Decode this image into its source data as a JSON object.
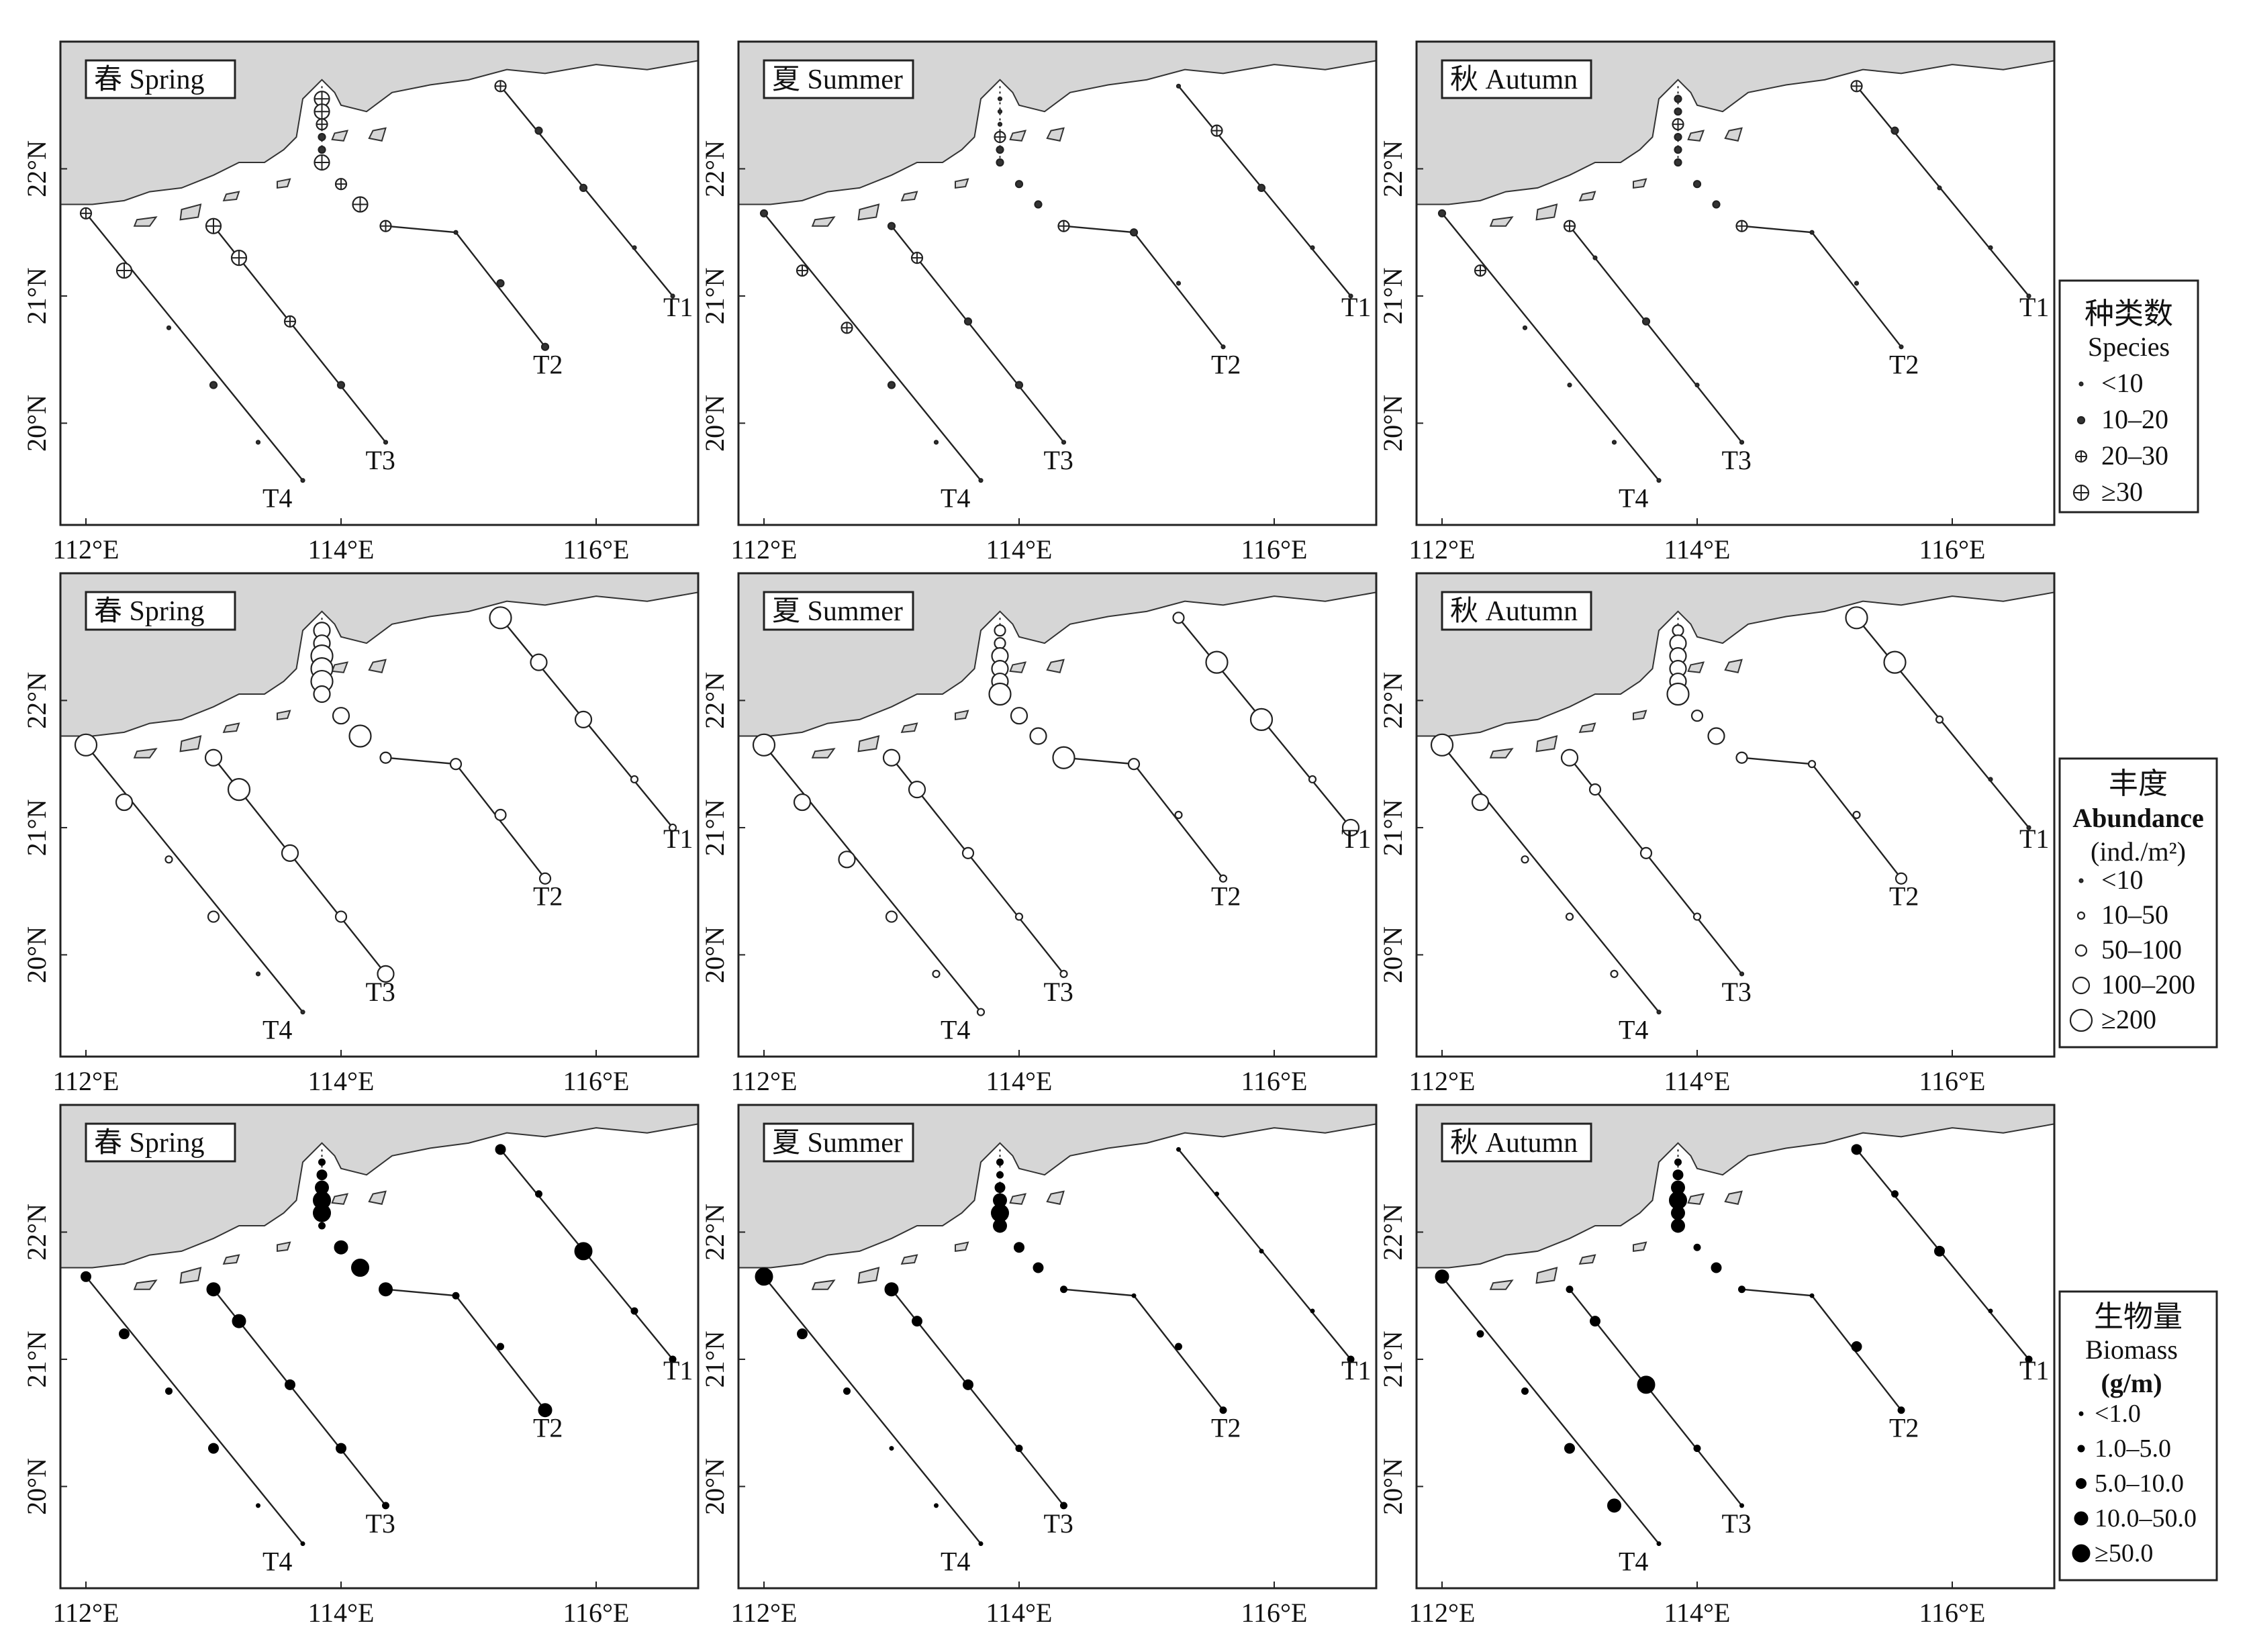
{
  "axes": {
    "x_ticks": [
      "112°E",
      "114°E",
      "116°E"
    ],
    "y_ticks": [
      "22°N",
      "21°N",
      "20°N"
    ]
  },
  "seasons": [
    "春 Spring",
    "夏 Summer",
    "秋 Autumn"
  ],
  "transects": [
    "T1",
    "T2",
    "T3",
    "T4"
  ],
  "legends": [
    {
      "title_cn": "种类数",
      "title_en": "Species",
      "unit": "",
      "classes": [
        "<10",
        "10–20",
        "20–30",
        "≥30"
      ],
      "marker": "cross"
    },
    {
      "title_cn": "丰度",
      "title_en": "Abundance",
      "unit": "(ind./m²)",
      "classes": [
        "<10",
        "10–50",
        "50–100",
        "100–200",
        "≥200"
      ],
      "marker": "open"
    },
    {
      "title_cn": "生物量",
      "title_en": "Biomass",
      "unit": "(g/m)",
      "classes": [
        "<1.0",
        "1.0–5.0",
        "5.0–10.0",
        "10.0–50.0",
        "≥50.0"
      ],
      "marker": "filled"
    }
  ],
  "map_data": {
    "lon_range": [
      111.8,
      116.8
    ],
    "lat_range": [
      19.2,
      23.0
    ],
    "transect_paths": {
      "T1": [
        [
          115.25,
          22.65
        ],
        [
          116.6,
          21.0
        ]
      ],
      "T2": [
        [
          114.35,
          21.55
        ],
        [
          114.9,
          21.5
        ],
        [
          115.6,
          20.6
        ]
      ],
      "T3": [
        [
          113.0,
          21.55
        ],
        [
          114.35,
          19.85
        ]
      ],
      "T4": [
        [
          112.0,
          21.65
        ],
        [
          113.7,
          19.55
        ]
      ]
    },
    "river_mouth_stations": [
      [
        113.85,
        22.55
      ],
      [
        113.85,
        22.45
      ],
      [
        113.85,
        22.35
      ],
      [
        113.85,
        22.25
      ],
      [
        113.85,
        22.15
      ],
      [
        113.85,
        22.05
      ]
    ],
    "stations": {
      "T1": [
        [
          115.25,
          22.65
        ],
        [
          115.55,
          22.3
        ],
        [
          115.9,
          21.85
        ],
        [
          116.3,
          21.38
        ],
        [
          116.6,
          21.0
        ]
      ],
      "T2": [
        [
          114.0,
          21.88
        ],
        [
          114.15,
          21.72
        ],
        [
          114.35,
          21.55
        ],
        [
          114.9,
          21.5
        ],
        [
          115.25,
          21.1
        ],
        [
          115.6,
          20.6
        ]
      ],
      "T3": [
        [
          113.0,
          21.55
        ],
        [
          113.2,
          21.3
        ],
        [
          113.6,
          20.8
        ],
        [
          114.0,
          20.3
        ],
        [
          114.35,
          19.85
        ]
      ],
      "T4": [
        [
          112.0,
          21.65
        ],
        [
          112.3,
          21.2
        ],
        [
          112.65,
          20.75
        ],
        [
          113.0,
          20.3
        ],
        [
          113.35,
          19.85
        ],
        [
          113.7,
          19.55
        ]
      ]
    },
    "panel_classes": {
      "species": [
        {
          "T1": [
            2,
            1,
            1,
            0,
            0
          ],
          "T2": [
            2,
            3,
            2,
            0,
            1,
            1
          ],
          "T3": [
            3,
            3,
            2,
            1,
            0
          ],
          "T4": [
            2,
            3,
            0,
            1,
            0,
            0
          ],
          "river": [
            3,
            3,
            2,
            1,
            1,
            3
          ]
        },
        {
          "T1": [
            0,
            2,
            1,
            0,
            0
          ],
          "T2": [
            1,
            1,
            2,
            1,
            0,
            0
          ],
          "T3": [
            1,
            2,
            1,
            1,
            0
          ],
          "T4": [
            1,
            2,
            2,
            1,
            0,
            0
          ],
          "river": [
            0,
            0,
            0,
            2,
            1,
            1
          ]
        },
        {
          "T1": [
            2,
            1,
            0,
            0,
            0
          ],
          "T2": [
            1,
            1,
            2,
            0,
            0,
            0
          ],
          "T3": [
            2,
            0,
            1,
            0,
            0
          ],
          "T4": [
            1,
            2,
            0,
            0,
            0,
            0
          ],
          "river": [
            1,
            1,
            2,
            1,
            1,
            1
          ]
        }
      ],
      "abundance": [
        {
          "T1": [
            4,
            3,
            3,
            1,
            1
          ],
          "T2": [
            3,
            4,
            2,
            2,
            2,
            2
          ],
          "T3": [
            3,
            4,
            3,
            2,
            3
          ],
          "T4": [
            4,
            3,
            1,
            2,
            0,
            0
          ],
          "river": [
            3,
            3,
            4,
            4,
            4,
            3
          ]
        },
        {
          "T1": [
            2,
            4,
            4,
            1,
            3
          ],
          "T2": [
            3,
            3,
            4,
            2,
            1,
            1
          ],
          "T3": [
            3,
            3,
            2,
            1,
            1
          ],
          "T4": [
            4,
            3,
            3,
            2,
            1,
            1
          ],
          "river": [
            2,
            2,
            3,
            3,
            3,
            4
          ]
        },
        {
          "T1": [
            4,
            4,
            1,
            0,
            0
          ],
          "T2": [
            2,
            3,
            2,
            1,
            1,
            2
          ],
          "T3": [
            3,
            2,
            2,
            1,
            0
          ],
          "T4": [
            4,
            3,
            1,
            1,
            1,
            0
          ],
          "river": [
            2,
            3,
            3,
            3,
            3,
            4
          ]
        }
      ],
      "biomass": [
        {
          "T1": [
            2,
            1,
            4,
            1,
            1
          ],
          "T2": [
            3,
            4,
            3,
            1,
            1,
            3
          ],
          "T3": [
            3,
            3,
            2,
            2,
            1
          ],
          "T4": [
            2,
            2,
            1,
            2,
            0,
            0
          ],
          "river": [
            1,
            2,
            3,
            4,
            4,
            1
          ]
        },
        {
          "T1": [
            0,
            0,
            0,
            0,
            1
          ],
          "T2": [
            2,
            2,
            1,
            0,
            1,
            1
          ],
          "T3": [
            3,
            2,
            2,
            1,
            1
          ],
          "T4": [
            4,
            2,
            1,
            0,
            0,
            0
          ],
          "river": [
            1,
            1,
            2,
            3,
            4,
            3
          ]
        },
        {
          "T1": [
            2,
            1,
            2,
            0,
            1
          ],
          "T2": [
            1,
            2,
            1,
            0,
            2,
            1
          ],
          "T3": [
            1,
            2,
            4,
            1,
            0
          ],
          "T4": [
            3,
            1,
            1,
            2,
            3,
            0
          ],
          "river": [
            1,
            2,
            3,
            4,
            3,
            3
          ]
        }
      ]
    }
  }
}
